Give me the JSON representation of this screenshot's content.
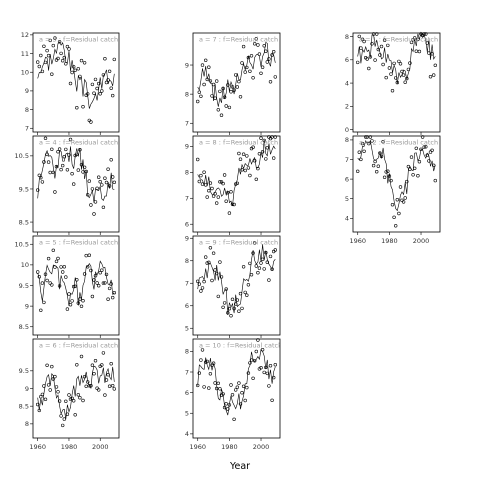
{
  "chart_data": {
    "type": "line",
    "layout": "faceted grid, 3 columns x 4 rows, shared x axis within each column, free y axis per panel",
    "xlabel": "Year",
    "xlim": [
      1957,
      2012
    ],
    "xticks": [
      1960,
      1980,
      2000
    ],
    "panels": [
      {
        "label": "a = 3  :  f=Residual catch",
        "col": 0,
        "row": 0,
        "ylim": [
          6.8,
          12.1
        ],
        "yticks": [
          7,
          8,
          9,
          10,
          11,
          12
        ],
        "seed": 3,
        "keys": [
          [
            1960,
            10.0
          ],
          [
            1964,
            10.5
          ],
          [
            1968,
            10.7
          ],
          [
            1972,
            11.2
          ],
          [
            1976,
            11.5
          ],
          [
            1978,
            11.1
          ],
          [
            1982,
            10.2
          ],
          [
            1986,
            9.3
          ],
          [
            1990,
            9.1
          ],
          [
            1994,
            8.4
          ],
          [
            1998,
            8.8
          ],
          [
            2002,
            9.6
          ],
          [
            2006,
            9.9
          ],
          [
            2009,
            9.5
          ]
        ]
      },
      {
        "label": "a = 4  :  f=Residual catch",
        "col": 0,
        "row": 1,
        "ylim": [
          8.2,
          11.1
        ],
        "yticks": [
          8.5,
          9.5,
          10.5
        ],
        "seed": 4,
        "keys": [
          [
            1960,
            9.5
          ],
          [
            1963,
            10.2
          ],
          [
            1967,
            10.6
          ],
          [
            1971,
            10.0
          ],
          [
            1975,
            10.5
          ],
          [
            1979,
            10.7
          ],
          [
            1983,
            10.4
          ],
          [
            1987,
            10.5
          ],
          [
            1990,
            10.1
          ],
          [
            1993,
            9.3
          ],
          [
            1996,
            9.2
          ],
          [
            1999,
            9.7
          ],
          [
            2002,
            9.4
          ],
          [
            2005,
            9.6
          ],
          [
            2009,
            9.8
          ]
        ]
      },
      {
        "label": "a = 5  :  f=Residual catch",
        "col": 0,
        "row": 2,
        "ylim": [
          8.3,
          10.7
        ],
        "yticks": [
          8.5,
          9.0,
          9.5,
          10.0,
          10.5
        ],
        "seed": 5,
        "keys": [
          [
            1960,
            9.6
          ],
          [
            1963,
            9.3
          ],
          [
            1966,
            9.8
          ],
          [
            1970,
            9.9
          ],
          [
            1974,
            9.6
          ],
          [
            1977,
            9.4
          ],
          [
            1980,
            9.2
          ],
          [
            1984,
            9.5
          ],
          [
            1987,
            9.1
          ],
          [
            1990,
            9.8
          ],
          [
            1993,
            9.9
          ],
          [
            1996,
            9.6
          ],
          [
            1999,
            9.8
          ],
          [
            2002,
            9.9
          ],
          [
            2006,
            9.6
          ],
          [
            2009,
            9.5
          ]
        ]
      },
      {
        "label": "a = 6  :  f=Residual catch",
        "col": 0,
        "row": 3,
        "ylim": [
          7.6,
          10.4
        ],
        "yticks": [
          8.0,
          8.5,
          9.0,
          9.5
        ],
        "seed": 6,
        "keys": [
          [
            1960,
            8.6
          ],
          [
            1964,
            8.9
          ],
          [
            1968,
            9.2
          ],
          [
            1971,
            9.1
          ],
          [
            1974,
            8.6
          ],
          [
            1977,
            8.4
          ],
          [
            1980,
            8.5
          ],
          [
            1984,
            9.0
          ],
          [
            1988,
            9.5
          ],
          [
            1991,
            9.4
          ],
          [
            1994,
            9.3
          ],
          [
            1998,
            9.4
          ],
          [
            2002,
            9.3
          ],
          [
            2006,
            9.4
          ],
          [
            2009,
            9.3
          ]
        ]
      },
      {
        "label": "a = 7  :  f=Residual catch",
        "col": 1,
        "row": 0,
        "ylim": [
          6.7,
          10.1
        ],
        "yticks": [
          7.0,
          8.0,
          9.0
        ],
        "seed": 7,
        "keys": [
          [
            1960,
            8.2
          ],
          [
            1963,
            8.6
          ],
          [
            1967,
            8.9
          ],
          [
            1970,
            8.1
          ],
          [
            1973,
            7.8
          ],
          [
            1976,
            7.9
          ],
          [
            1979,
            8.3
          ],
          [
            1982,
            8.0
          ],
          [
            1985,
            8.6
          ],
          [
            1988,
            8.9
          ],
          [
            1991,
            9.0
          ],
          [
            1994,
            9.2
          ],
          [
            1997,
            9.0
          ],
          [
            2000,
            9.3
          ],
          [
            2003,
            9.6
          ],
          [
            2006,
            9.0
          ],
          [
            2009,
            9.1
          ]
        ]
      },
      {
        "label": "a = 8  :  f=Residual catch",
        "col": 1,
        "row": 1,
        "ylim": [
          5.7,
          9.4
        ],
        "yticks": [
          6.0,
          7.0,
          8.0,
          9.0
        ],
        "seed": 8,
        "keys": [
          [
            1960,
            8.0
          ],
          [
            1963,
            7.5
          ],
          [
            1967,
            7.8
          ],
          [
            1971,
            7.2
          ],
          [
            1975,
            7.1
          ],
          [
            1978,
            7.0
          ],
          [
            1981,
            6.8
          ],
          [
            1984,
            7.4
          ],
          [
            1987,
            8.2
          ],
          [
            1990,
            8.4
          ],
          [
            1993,
            8.3
          ],
          [
            1996,
            8.5
          ],
          [
            1999,
            8.6
          ],
          [
            2002,
            9.0
          ],
          [
            2006,
            8.7
          ],
          [
            2009,
            8.8
          ]
        ]
      },
      {
        "label": "a = 9  :  f=Residual catch",
        "col": 1,
        "row": 2,
        "ylim": [
          4.7,
          9.1
        ],
        "yticks": [
          5,
          6,
          7,
          8,
          9
        ],
        "seed": 9,
        "keys": [
          [
            1960,
            7.0
          ],
          [
            1963,
            7.2
          ],
          [
            1967,
            7.5
          ],
          [
            1970,
            7.6
          ],
          [
            1973,
            7.2
          ],
          [
            1976,
            6.8
          ],
          [
            1979,
            6.0
          ],
          [
            1982,
            6.2
          ],
          [
            1985,
            6.0
          ],
          [
            1988,
            6.5
          ],
          [
            1991,
            7.4
          ],
          [
            1994,
            7.9
          ],
          [
            1997,
            8.2
          ],
          [
            2000,
            8.4
          ],
          [
            2003,
            8.2
          ],
          [
            2006,
            7.7
          ],
          [
            2009,
            7.8
          ]
        ]
      },
      {
        "label": "a = 10  :  f=Residual catch",
        "col": 1,
        "row": 3,
        "ylim": [
          3.8,
          8.6
        ],
        "yticks": [
          4,
          5,
          6,
          7,
          8
        ],
        "seed": 10,
        "keys": [
          [
            1960,
            6.8
          ],
          [
            1963,
            7.2
          ],
          [
            1967,
            7.5
          ],
          [
            1970,
            7.3
          ],
          [
            1973,
            6.2
          ],
          [
            1976,
            5.6
          ],
          [
            1979,
            5.2
          ],
          [
            1982,
            5.4
          ],
          [
            1985,
            5.6
          ],
          [
            1988,
            5.3
          ],
          [
            1991,
            6.8
          ],
          [
            1994,
            7.6
          ],
          [
            1997,
            7.9
          ],
          [
            2000,
            8.0
          ],
          [
            2003,
            7.4
          ],
          [
            2006,
            7.0
          ],
          [
            2009,
            6.8
          ]
        ]
      },
      {
        "label": "a = 1  :  f=Residual catch",
        "col": 2,
        "row": 0,
        "ylim": [
          -0.2,
          8.3
        ],
        "yticks": [
          0,
          2,
          4,
          6,
          8
        ],
        "seed": 1,
        "keys": [
          [
            1960,
            6.2
          ],
          [
            1963,
            6.5
          ],
          [
            1967,
            7.0
          ],
          [
            1970,
            7.3
          ],
          [
            1974,
            7.0
          ],
          [
            1977,
            6.2
          ],
          [
            1980,
            5.6
          ],
          [
            1984,
            4.6
          ],
          [
            1987,
            4.2
          ],
          [
            1990,
            4.6
          ],
          [
            1993,
            5.5
          ],
          [
            1996,
            7.1
          ],
          [
            1999,
            7.6
          ],
          [
            2002,
            7.5
          ],
          [
            2006,
            6.7
          ],
          [
            2009,
            6.2
          ]
        ]
      },
      {
        "label": "a = 2  :  f=Residual catch",
        "col": 2,
        "row": 1,
        "ylim": [
          3.3,
          8.2
        ],
        "yticks": [
          4,
          5,
          6,
          7,
          8
        ],
        "seed": 2,
        "keys": [
          [
            1960,
            7.2
          ],
          [
            1963,
            7.6
          ],
          [
            1966,
            7.8
          ],
          [
            1969,
            7.4
          ],
          [
            1973,
            7.5
          ],
          [
            1976,
            7.1
          ],
          [
            1979,
            6.3
          ],
          [
            1982,
            5.3
          ],
          [
            1985,
            4.8
          ],
          [
            1988,
            5.0
          ],
          [
            1991,
            5.7
          ],
          [
            1994,
            6.8
          ],
          [
            1997,
            7.3
          ],
          [
            2000,
            7.6
          ],
          [
            2003,
            7.4
          ],
          [
            2006,
            7.0
          ],
          [
            2009,
            6.5
          ]
        ]
      }
    ]
  }
}
